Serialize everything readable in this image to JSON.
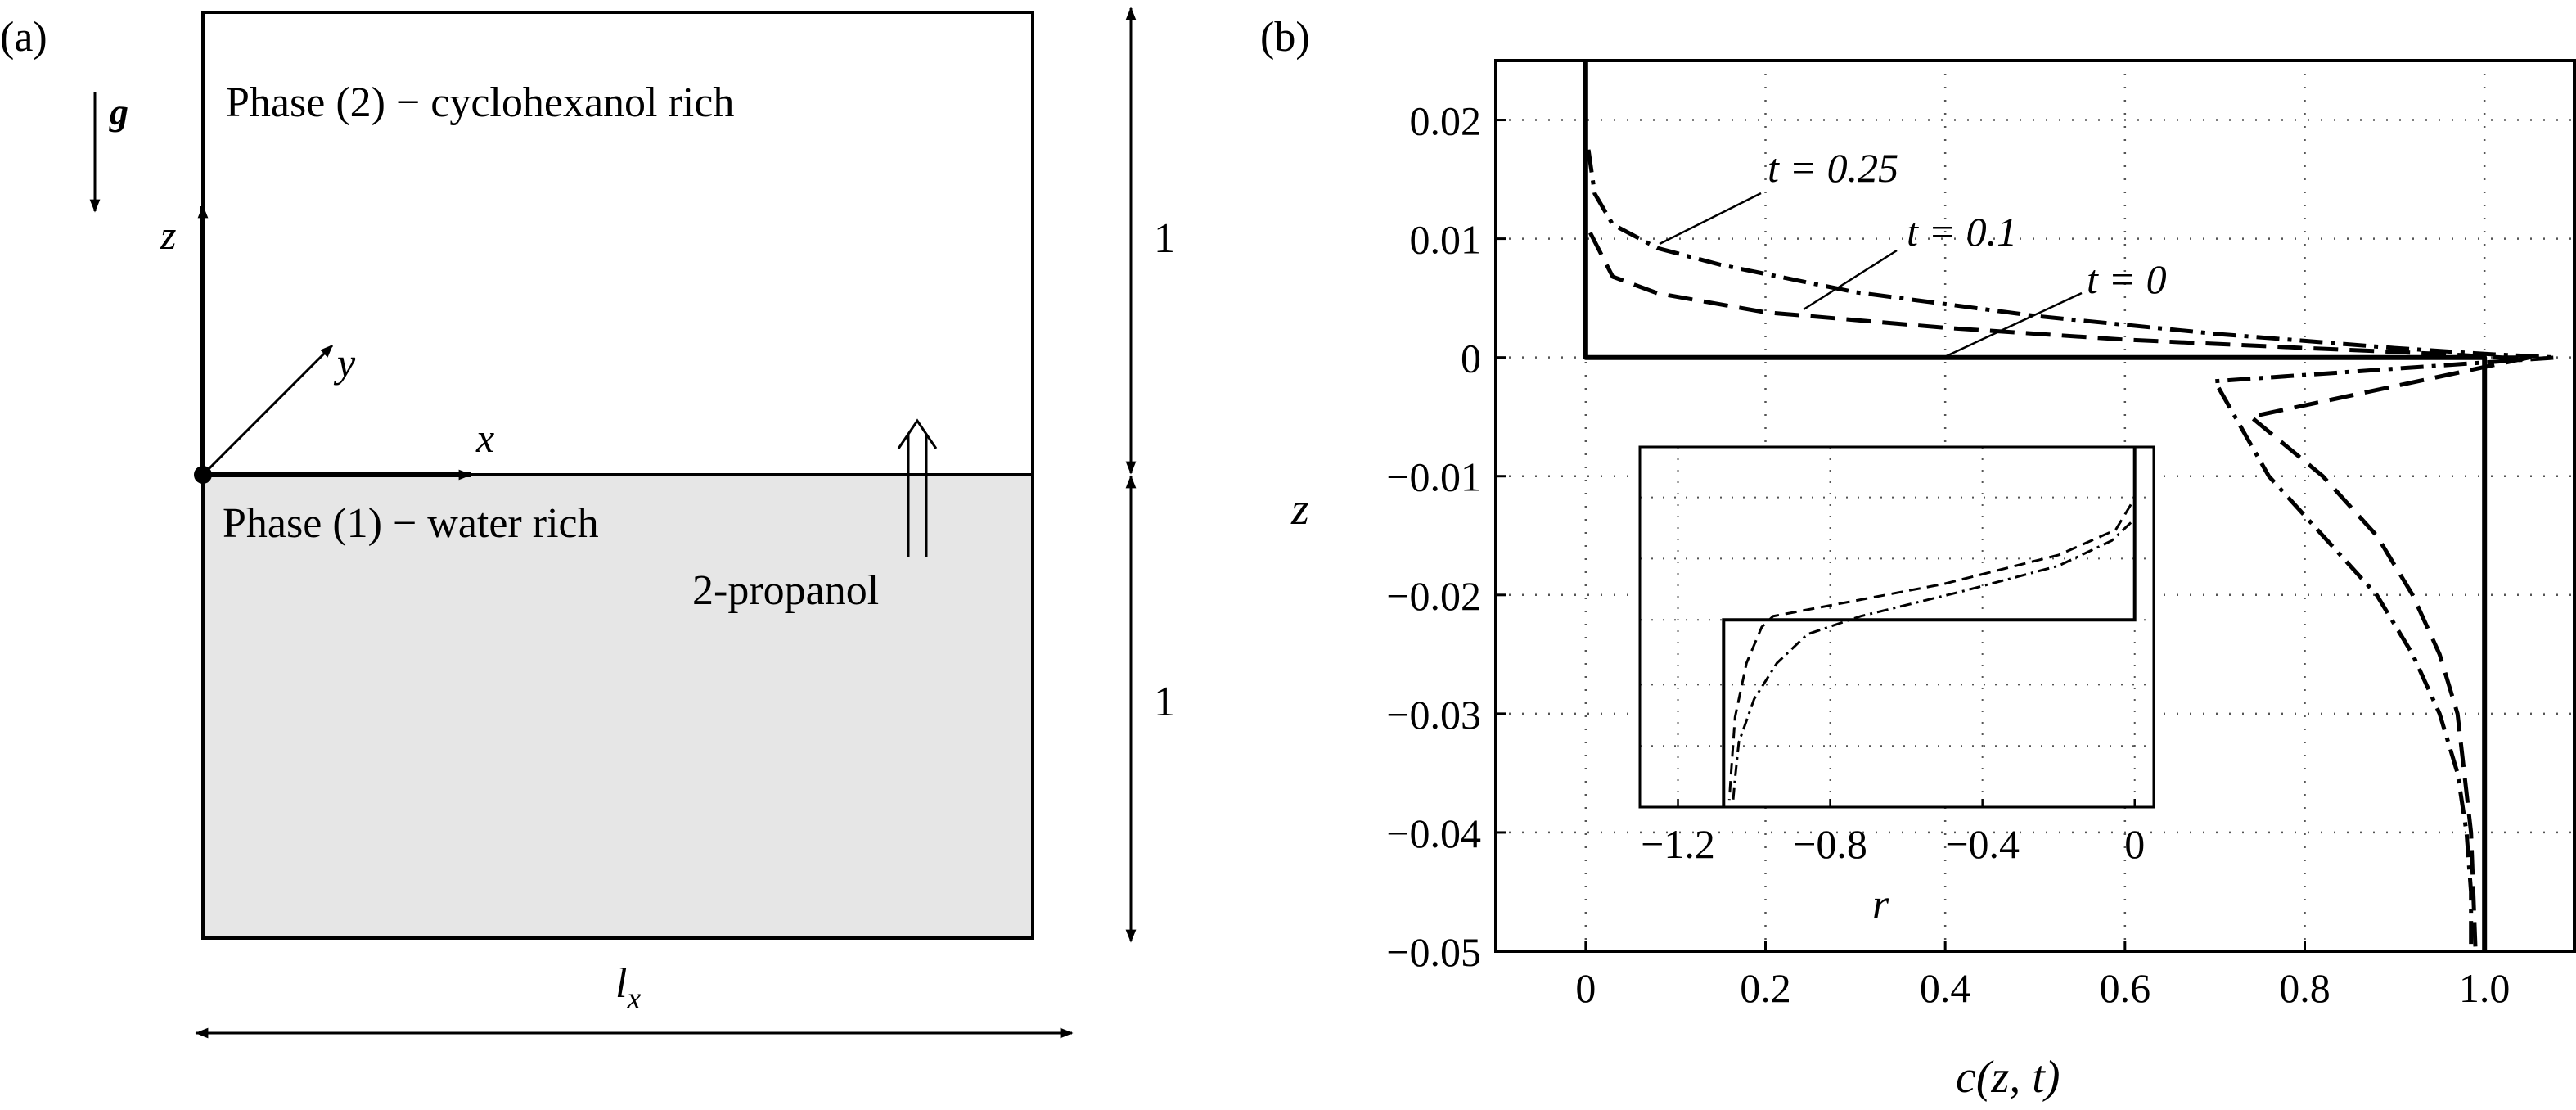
{
  "panel_a": {
    "label": "(a)",
    "gravity": "g",
    "phase2": "Phase (2) − cyclohexanol rich",
    "phase1": "Phase (1) − water rich",
    "solute": "2-propanol",
    "axis_x": "x",
    "axis_y": "y",
    "axis_z": "z",
    "height_upper": "1",
    "height_lower": "1",
    "width_l": "l",
    "width_sub": "x"
  },
  "panel_b": {
    "label": "(b)",
    "annotations": {
      "t025": "t = 0.25",
      "t01": "t = 0.1",
      "t0": "t = 0"
    },
    "inset": {
      "xlabel": "r",
      "xticks": [
        "−1.2",
        "−0.8",
        "−0.4",
        "0"
      ]
    }
  },
  "chart_data": {
    "type": "line",
    "title": "",
    "xlabel": "c(z, t)",
    "ylabel": "z",
    "xlim": [
      -0.1,
      1.1
    ],
    "ylim": [
      -0.05,
      0.025
    ],
    "xticks": [
      "0",
      "0.2",
      "0.4",
      "0.6",
      "0.8",
      "1.0"
    ],
    "xtick_values": [
      0,
      0.2,
      0.4,
      0.6,
      0.8,
      1.0
    ],
    "yticks": [
      "0.02",
      "0.01",
      "0",
      "−0.01",
      "−0.02",
      "−0.03",
      "−0.04",
      "−0.05"
    ],
    "ytick_values": [
      0.02,
      0.01,
      0,
      -0.01,
      -0.02,
      -0.03,
      -0.04,
      -0.05
    ],
    "grid": true,
    "line_styles": {
      "t0": "solid",
      "t01": "dashed",
      "t025": "dash-dot"
    },
    "series": [
      {
        "key": "t0",
        "points": [
          [
            0,
            0.025
          ],
          [
            0,
            0
          ],
          [
            1.0,
            0
          ],
          [
            1.0,
            -0.05
          ]
        ]
      },
      {
        "key": "t01",
        "points": [
          [
            0.005,
            0.0105
          ],
          [
            0.03,
            0.0068
          ],
          [
            0.08,
            0.0054
          ],
          [
            0.2,
            0.0038
          ],
          [
            0.4,
            0.0025
          ],
          [
            0.6,
            0.0015
          ],
          [
            0.8,
            0.0008
          ],
          [
            0.95,
            0.0003
          ],
          [
            1.02,
            0.0
          ],
          [
            1.05,
            0.0
          ],
          [
            0.74,
            -0.005
          ],
          [
            0.82,
            -0.01
          ],
          [
            0.88,
            -0.015
          ],
          [
            0.92,
            -0.02
          ],
          [
            0.95,
            -0.025
          ],
          [
            0.97,
            -0.03
          ],
          [
            0.985,
            -0.04
          ],
          [
            0.99,
            -0.05
          ]
        ]
      },
      {
        "key": "t025",
        "points": [
          [
            0.003,
            0.0175
          ],
          [
            0.01,
            0.0138
          ],
          [
            0.03,
            0.0112
          ],
          [
            0.08,
            0.0092
          ],
          [
            0.15,
            0.0078
          ],
          [
            0.3,
            0.0055
          ],
          [
            0.5,
            0.0035
          ],
          [
            0.7,
            0.002
          ],
          [
            0.9,
            0.0008
          ],
          [
            1.0,
            0.0003
          ],
          [
            1.08,
            0.0
          ],
          [
            0.7,
            -0.002
          ],
          [
            0.76,
            -0.01
          ],
          [
            0.82,
            -0.015
          ],
          [
            0.88,
            -0.02
          ],
          [
            0.92,
            -0.025
          ],
          [
            0.95,
            -0.03
          ],
          [
            0.97,
            -0.035
          ],
          [
            0.98,
            -0.04
          ],
          [
            0.985,
            -0.045
          ],
          [
            0.985,
            -0.05
          ]
        ]
      }
    ],
    "inset_chart": {
      "xlabel": "r",
      "xlim": [
        -1.3,
        0.05
      ],
      "xtick_values": [
        -1.2,
        -0.8,
        -0.4,
        0
      ],
      "series": [
        {
          "key": "t0",
          "points": [
            [
              0,
              1
            ],
            [
              0,
              0.52
            ],
            [
              -1.08,
              0.52
            ],
            [
              -1.08,
              0
            ]
          ]
        },
        {
          "key": "t01",
          "points": [
            [
              -0.01,
              0.84
            ],
            [
              -0.05,
              0.77
            ],
            [
              -0.2,
              0.7
            ],
            [
              -0.5,
              0.62
            ],
            [
              -0.8,
              0.56
            ],
            [
              -0.95,
              0.53
            ],
            [
              -0.98,
              0.5
            ],
            [
              -1.02,
              0.4
            ],
            [
              -1.05,
              0.25
            ],
            [
              -1.06,
              0.1
            ],
            [
              -1.065,
              0.02
            ]
          ]
        },
        {
          "key": "t025",
          "points": [
            [
              -0.01,
              0.79
            ],
            [
              -0.06,
              0.74
            ],
            [
              -0.2,
              0.67
            ],
            [
              -0.45,
              0.6
            ],
            [
              -0.72,
              0.53
            ],
            [
              -0.86,
              0.48
            ],
            [
              -0.94,
              0.4
            ],
            [
              -1.0,
              0.3
            ],
            [
              -1.04,
              0.18
            ],
            [
              -1.05,
              0.08
            ],
            [
              -1.055,
              0.02
            ]
          ]
        }
      ]
    }
  }
}
